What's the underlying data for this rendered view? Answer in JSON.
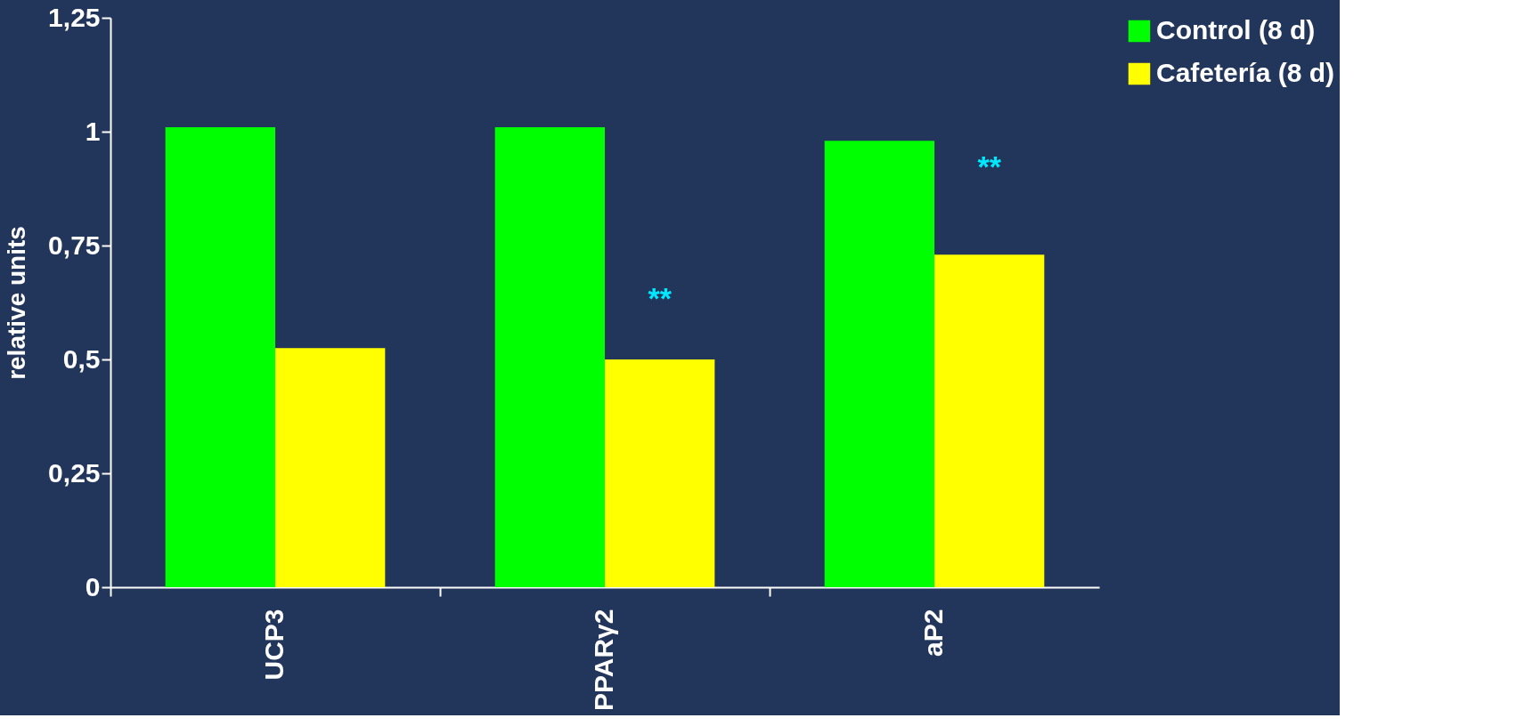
{
  "chart_data": {
    "type": "bar",
    "ylabel": "relative units",
    "categories": [
      "UCP3",
      "PPARγ2",
      "aP2"
    ],
    "series": [
      {
        "name": "Control (8 d)",
        "color": "#00ff00",
        "values": [
          1.01,
          1.01,
          0.98
        ]
      },
      {
        "name": "Cafetería (8 d)",
        "color": "#ffff00",
        "values": [
          0.525,
          0.5,
          0.73
        ]
      }
    ],
    "ylim": [
      0,
      1.25
    ],
    "yticks": [
      0,
      {
        "value": 0.25,
        "label": "0,25"
      },
      {
        "value": 0.5,
        "label": "0,5"
      },
      {
        "value": 0.75,
        "label": "0,75"
      },
      1,
      {
        "value": 1.25,
        "label": "1,25"
      }
    ],
    "annotations": [
      {
        "text": "**",
        "x": "PPARγ2",
        "y": 0.63
      },
      {
        "text": "**",
        "x": "aP2",
        "y": 0.92
      }
    ],
    "grid": false,
    "legend": "right"
  }
}
